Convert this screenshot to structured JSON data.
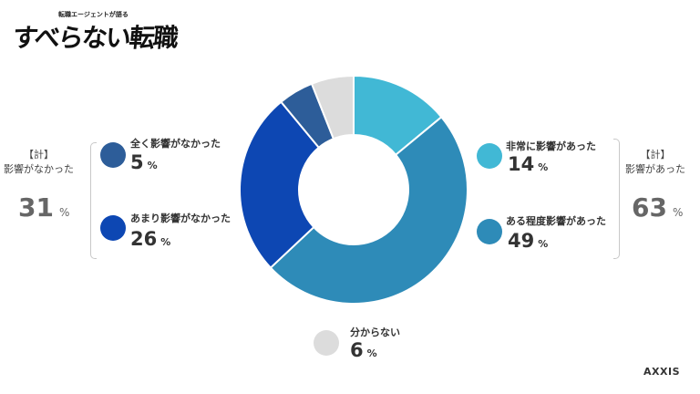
{
  "logo": {
    "tagline": "転職エージェントが語る",
    "title": "すべらない転職"
  },
  "brand": "AXXIS",
  "colors": {
    "very_affected": "#41b8d5",
    "somewhat_affected": "#2e8bb8",
    "not_much": "#0d47b3",
    "not_at_all": "#2d5d99",
    "dont_know": "#dcdcdc"
  },
  "chart_data": {
    "type": "pie",
    "donut": true,
    "slices": [
      {
        "label": "非常に影響があった",
        "value": 14,
        "color": "#41b8d5"
      },
      {
        "label": "ある程度影響があった",
        "value": 49,
        "color": "#2e8bb8"
      },
      {
        "label": "あまり影響がなかった",
        "value": 26,
        "color": "#0d47b3"
      },
      {
        "label": "全く影響がなかった",
        "value": 5,
        "color": "#2d5d99"
      },
      {
        "label": "分からない",
        "value": 6,
        "color": "#dcdcdc"
      }
    ],
    "unit": "%",
    "totals": [
      {
        "label_top": "【計】",
        "label_bottom": "影響があった",
        "value": "63",
        "unit": "%"
      },
      {
        "label_top": "【計】",
        "label_bottom": "影響がなかった",
        "value": "31",
        "unit": "%"
      }
    ]
  }
}
